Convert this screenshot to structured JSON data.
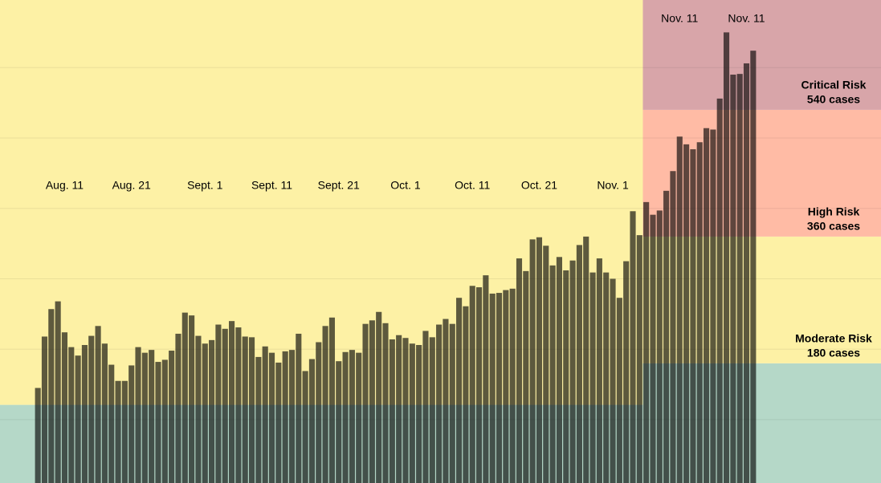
{
  "chart_data": {
    "type": "bar",
    "categories": [
      null,
      null,
      null,
      null,
      "Aug. 11",
      null,
      null,
      null,
      null,
      null,
      null,
      null,
      null,
      null,
      "Aug. 21",
      null,
      null,
      null,
      null,
      null,
      null,
      null,
      null,
      null,
      null,
      "Sept. 1",
      null,
      null,
      null,
      null,
      null,
      null,
      null,
      null,
      null,
      "Sept. 11",
      null,
      null,
      null,
      null,
      null,
      null,
      null,
      null,
      null,
      "Sept. 21",
      null,
      null,
      null,
      null,
      null,
      null,
      null,
      null,
      null,
      "Oct. 1",
      null,
      null,
      null,
      null,
      null,
      null,
      null,
      null,
      null,
      "Oct. 11",
      null,
      null,
      null,
      null,
      null,
      null,
      null,
      null,
      null,
      "Oct. 21",
      null,
      null,
      null,
      null,
      null,
      null,
      null,
      null,
      null,
      null,
      "Nov. 1",
      null,
      null,
      null,
      null,
      null,
      null,
      null,
      null,
      null,
      "Nov. 11",
      null,
      null,
      null,
      null,
      null,
      null,
      null,
      null,
      null,
      "Nov. 11",
      null
    ],
    "values": [
      145,
      218,
      257,
      268,
      224,
      203,
      191,
      206,
      219,
      233,
      208,
      178,
      155,
      155,
      177,
      203,
      195,
      199,
      182,
      185,
      198,
      222,
      252,
      248,
      219,
      208,
      213,
      235,
      229,
      240,
      231,
      218,
      217,
      189,
      204,
      195,
      181,
      197,
      199,
      222,
      169,
      186,
      210,
      233,
      245,
      183,
      196,
      199,
      195,
      236,
      241,
      253,
      237,
      214,
      220,
      216,
      208,
      206,
      226,
      217,
      235,
      243,
      236,
      273,
      261,
      290,
      288,
      305,
      279,
      280,
      284,
      286,
      329,
      311,
      356,
      359,
      347,
      319,
      331,
      312,
      326,
      348,
      360,
      309,
      329,
      309,
      300,
      273,
      325,
      396,
      362,
      409,
      391,
      397,
      425,
      453,
      502,
      491,
      484,
      494,
      514,
      512,
      556,
      650,
      590,
      591,
      606,
      624
    ],
    "color": "#000000",
    "ylim": [
      10,
      696
    ],
    "yticks": [
      100,
      200,
      300,
      400,
      500,
      600
    ],
    "grid": true,
    "low_color": "#b5d8c8",
    "earlier_threshold": 121,
    "zone_start": 91,
    "risk_levels": [
      {
        "name": "Moderate Risk",
        "label": "180 cases",
        "value": 180,
        "color": "#fdf1a5"
      },
      {
        "name": "High Risk",
        "label": "360 cases",
        "value": 360,
        "color": "#ffbba5"
      },
      {
        "name": "Critical Risk",
        "label": "540 cases",
        "value": 540,
        "color": "#d8a5a9"
      }
    ]
  }
}
